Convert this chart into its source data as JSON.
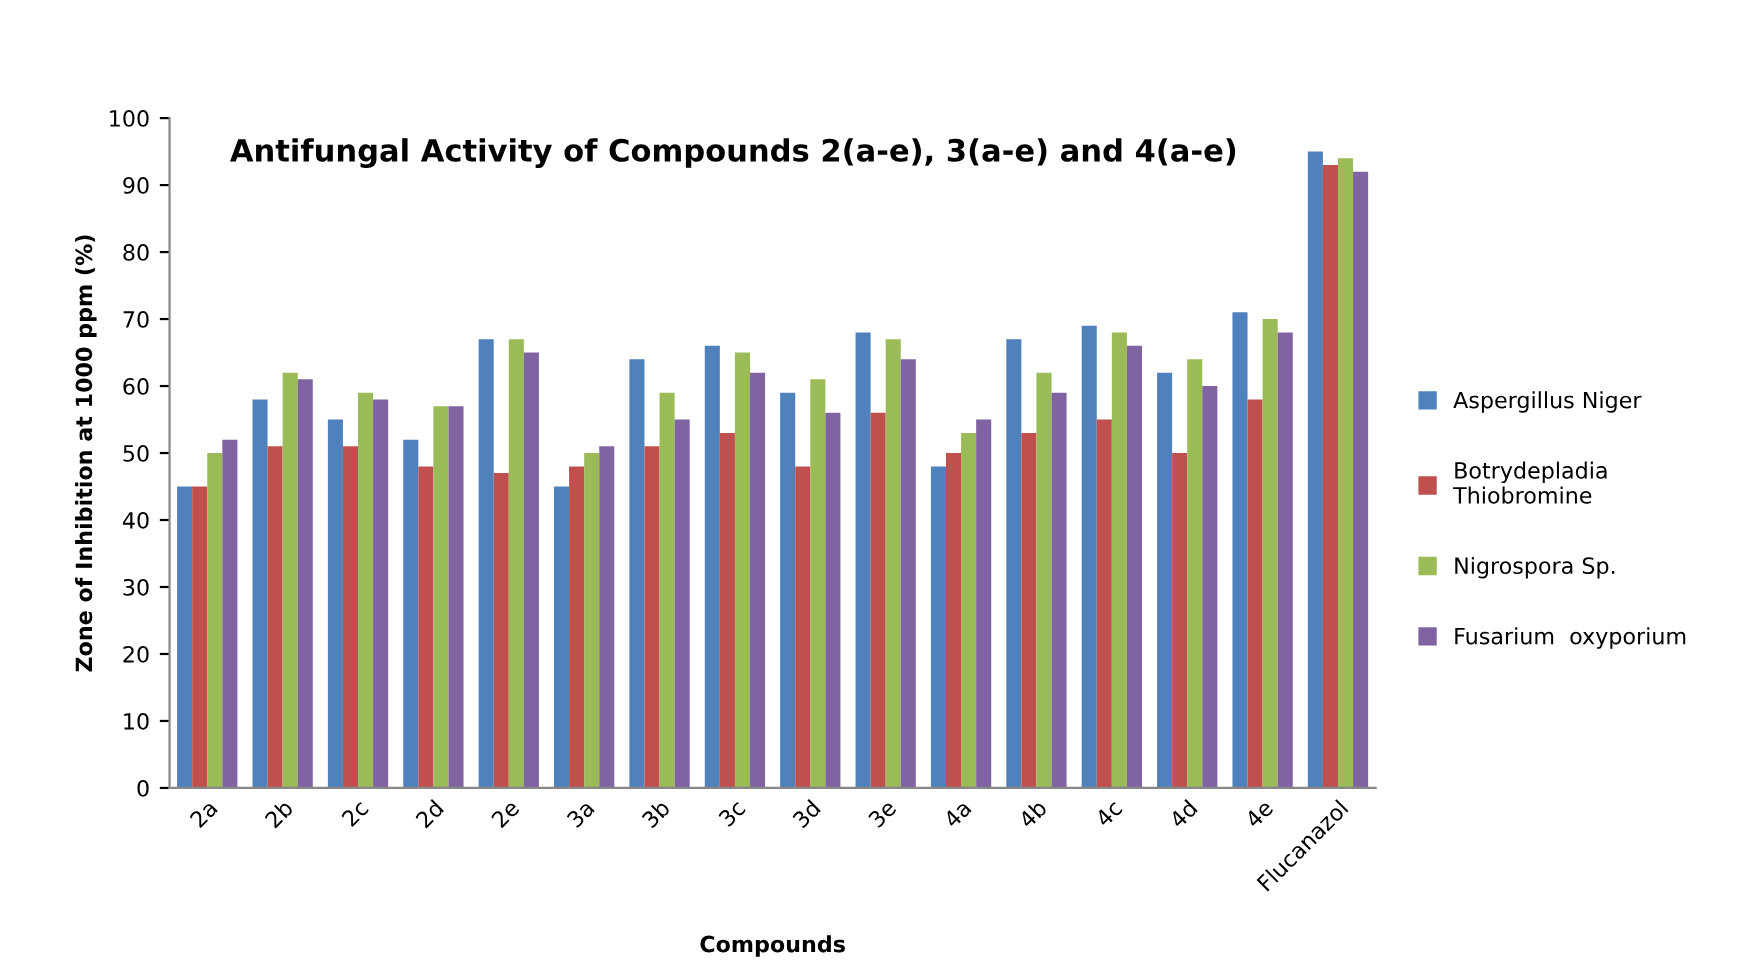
{
  "chart_data": {
    "type": "bar",
    "title": "Antifungal Activity of Compounds 2(a-e), 3(a-e) and 4(a-e)",
    "xlabel": "Compounds",
    "ylabel": "Zone of Inhibition at 1000 ppm (%)",
    "categories": [
      "2a",
      "2b",
      "2c",
      "2d",
      "2e",
      "3a",
      "3b",
      "3c",
      "3d",
      "3e",
      "4a",
      "4b",
      "4c",
      "4d",
      "4e",
      "Flucanazol"
    ],
    "series": [
      {
        "name": "Aspergillus Niger",
        "color": "#4f81bd",
        "values": [
          45,
          58,
          55,
          52,
          67,
          45,
          64,
          66,
          59,
          68,
          48,
          67,
          69,
          62,
          71,
          95
        ]
      },
      {
        "name": "Botrydepladia\nThiobromine",
        "color": "#c0504d",
        "values": [
          45,
          51,
          51,
          48,
          47,
          48,
          51,
          53,
          48,
          56,
          50,
          53,
          55,
          50,
          58,
          93
        ]
      },
      {
        "name": "Nigrospora Sp.",
        "color": "#9bbb59",
        "values": [
          50,
          62,
          59,
          57,
          67,
          50,
          59,
          65,
          61,
          67,
          53,
          62,
          68,
          64,
          70,
          94
        ]
      },
      {
        "name": "Fusarium  oxyporium",
        "color": "#8064a2",
        "values": [
          52,
          61,
          58,
          57,
          65,
          51,
          55,
          62,
          56,
          64,
          55,
          59,
          66,
          60,
          68,
          92
        ]
      }
    ],
    "ylim": [
      0,
      100
    ],
    "yticks": [
      0,
      10,
      20,
      30,
      40,
      50,
      60,
      70,
      80,
      90,
      100
    ],
    "grid": false,
    "legend": "right"
  }
}
